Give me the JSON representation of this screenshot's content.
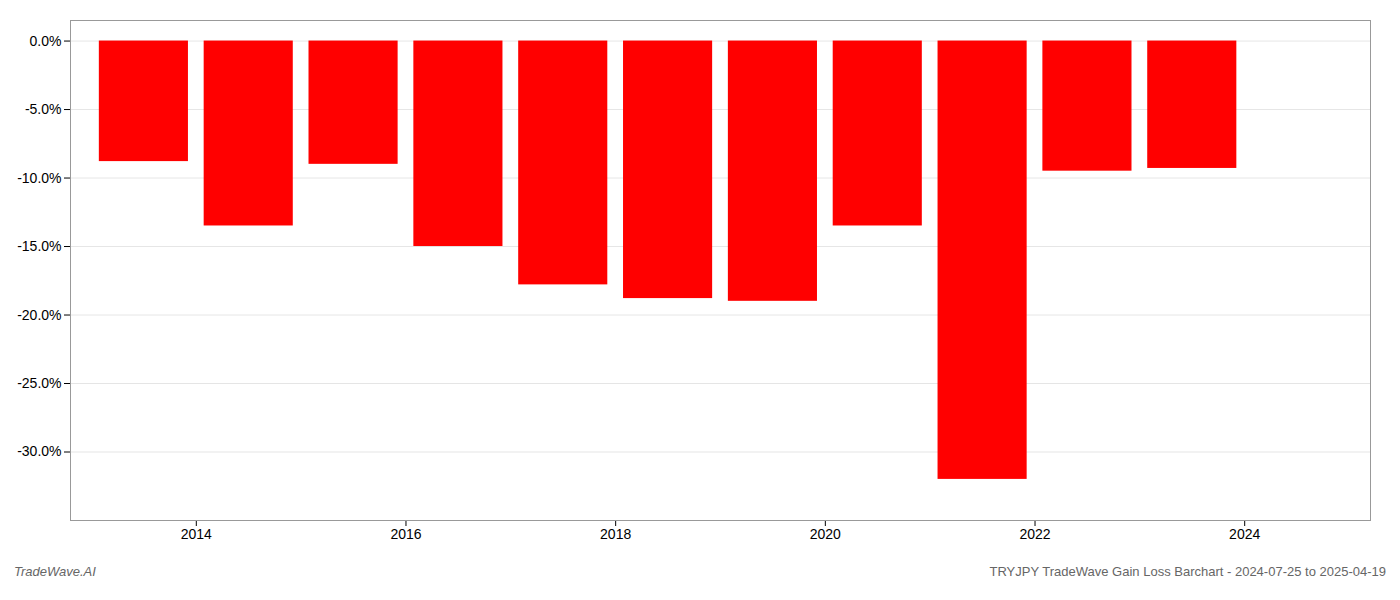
{
  "chart_data": {
    "type": "bar",
    "x": [
      2013.5,
      2014.5,
      2015.5,
      2016.5,
      2017.5,
      2018.5,
      2019.5,
      2020.5,
      2021.5,
      2022.5,
      2023.5
    ],
    "values": [
      -8.8,
      -13.5,
      -9.0,
      -15.0,
      -17.8,
      -18.8,
      -19.0,
      -13.5,
      -32.0,
      -9.5,
      -9.3
    ],
    "color": "#ff0000",
    "xlim": [
      2012.8,
      2025.2
    ],
    "xticks": [
      2014,
      2016,
      2018,
      2020,
      2022,
      2024
    ],
    "ylim": [
      -35,
      1.5
    ],
    "yticks": [
      {
        "value": 0.0,
        "label": "0.0%"
      },
      {
        "value": -5.0,
        "label": "-5.0%"
      },
      {
        "value": -10.0,
        "label": "-10.0%"
      },
      {
        "value": -15.0,
        "label": "-15.0%"
      },
      {
        "value": -20.0,
        "label": "-20.0%"
      },
      {
        "value": -25.0,
        "label": "-25.0%"
      },
      {
        "value": -30.0,
        "label": "-30.0%"
      }
    ],
    "grid": true,
    "annotations": [
      "TradeWave.AI",
      "TRYJPY TradeWave Gain Loss Barchart - 2024-07-25 to 2025-04-19"
    ]
  }
}
